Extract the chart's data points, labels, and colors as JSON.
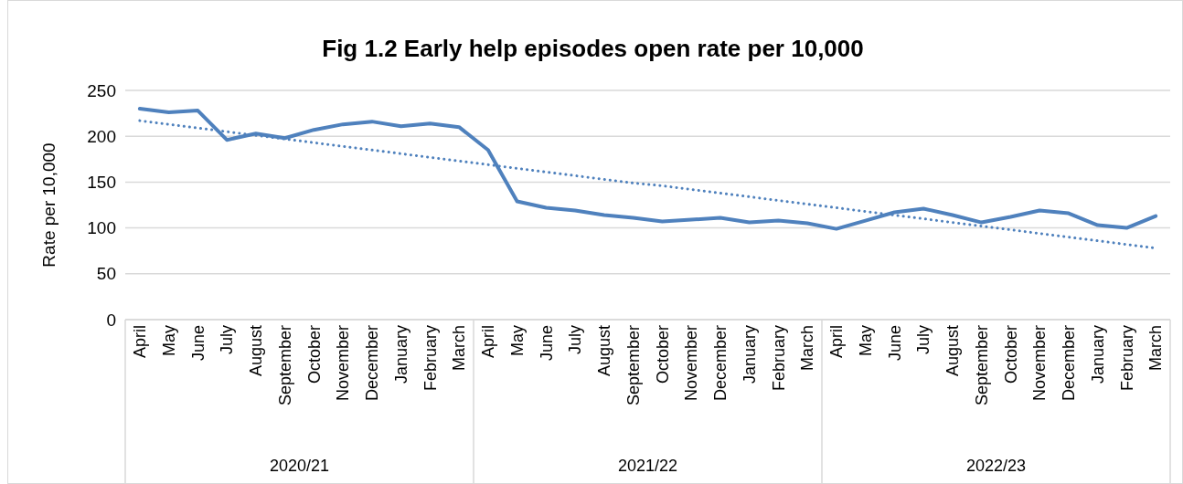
{
  "chart_data": {
    "type": "line",
    "title": "Fig 1.2 Early help episodes open rate per 10,000",
    "ylabel": "Rate per 10,000",
    "categories": [
      "April",
      "May",
      "June",
      "July",
      "August",
      "September",
      "October",
      "November",
      "December",
      "January",
      "February",
      "March",
      "April",
      "May",
      "June",
      "July",
      "August",
      "September",
      "October",
      "November",
      "December",
      "January",
      "February",
      "March",
      "April",
      "May",
      "June",
      "July",
      "August",
      "September",
      "October",
      "November",
      "December",
      "January",
      "February",
      "March"
    ],
    "annotations": [
      "2020/21",
      "2021/22",
      "2022/23"
    ],
    "series": [
      {
        "color": "#4f81bd",
        "line_style": "solid",
        "values": [
          230,
          226,
          228,
          196,
          203,
          198,
          207,
          213,
          216,
          211,
          214,
          210,
          185,
          129,
          122,
          119,
          114,
          111,
          107,
          109,
          111,
          106,
          108,
          105,
          99,
          108,
          117,
          121,
          114,
          106,
          112,
          119,
          116,
          103,
          100,
          113
        ]
      },
      {
        "color": "#4f81bd",
        "line_style": "dotted",
        "values": [
          217,
          213,
          209,
          205,
          201,
          197,
          193,
          189,
          185,
          181,
          177,
          173,
          169,
          165,
          161,
          157,
          153,
          149,
          146,
          142,
          138,
          134,
          130,
          126,
          122,
          118,
          114,
          110,
          106,
          102,
          98,
          94,
          90,
          86,
          82,
          78
        ]
      }
    ],
    "ylim": [
      0,
      250
    ],
    "yticks": [
      0,
      50,
      100,
      150,
      200,
      250
    ],
    "grid": "y"
  }
}
